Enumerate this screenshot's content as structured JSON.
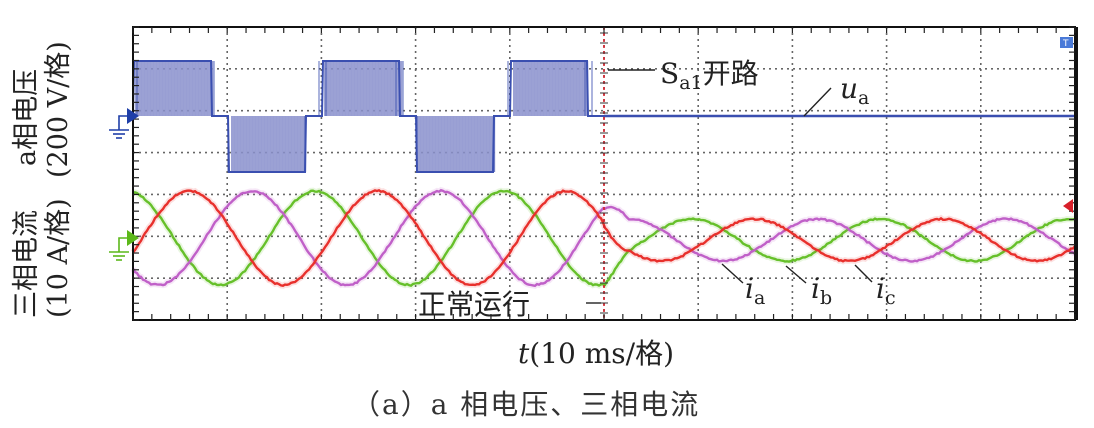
{
  "chart_data": {
    "type": "line",
    "title": "",
    "caption": "（a）a 相电压、三相电流",
    "xlabel": "t(10 ms/格)",
    "xlabel_var": "t",
    "xlabel_unit": "(10 ms/格)",
    "ylabel_top": "a相电压 (200 V/格)",
    "ylabel_bottom": "三相电流 (10 A/格)",
    "ylabel_top_name": "a相电压",
    "ylabel_top_unit": "(200 V/格)",
    "ylabel_bottom_name": "三相电流",
    "ylabel_bottom_unit": "(10 A/格)",
    "grid": true,
    "divisions": {
      "x": 10,
      "y": 7
    },
    "x_div_ms": 10,
    "x_range_ms": [
      0,
      100
    ],
    "fault_time_ms": 50,
    "annotations": {
      "fault": "Sa1开路",
      "fault_base": "S",
      "fault_sub": "a1",
      "fault_text": "开路",
      "normal": "正常运行",
      "voltage_label": "u",
      "voltage_sub": "a",
      "current_labels": [
        {
          "base": "i",
          "sub": "a"
        },
        {
          "base": "i",
          "sub": "b"
        },
        {
          "base": "i",
          "sub": "c"
        }
      ]
    },
    "series": [
      {
        "name": "u_a",
        "color": "#3a4fb0",
        "fill": "#8a90cc",
        "unit": "V",
        "description": "Three-level PWM phase voltage before fault (levels ≈ +200, 0, -200 V peak envelope, 20 ms period); flat at 0 V after Sa1 open circuit at t=50 ms",
        "levels_V": [
          200,
          0,
          -200
        ],
        "period_ms": 20
      },
      {
        "name": "i_a",
        "color": "#e8302c",
        "unit": "A",
        "amplitude_before_A": 10,
        "amplitude_after_A": 4.5,
        "period_ms": 20
      },
      {
        "name": "i_b",
        "color": "#c060c8",
        "unit": "A",
        "amplitude_before_A": 10,
        "amplitude_after_A": 4.5,
        "period_ms": 20
      },
      {
        "name": "i_c",
        "color": "#66c02a",
        "unit": "A",
        "amplitude_before_A": 10,
        "amplitude_after_A": 4.5,
        "period_ms": 20
      }
    ],
    "channel_markers": [
      {
        "channel": "voltage",
        "color": "#1f3fa8"
      },
      {
        "channel": "current",
        "color": "#5cb81a"
      }
    ],
    "trigger_marker_color": "#d8202a"
  }
}
